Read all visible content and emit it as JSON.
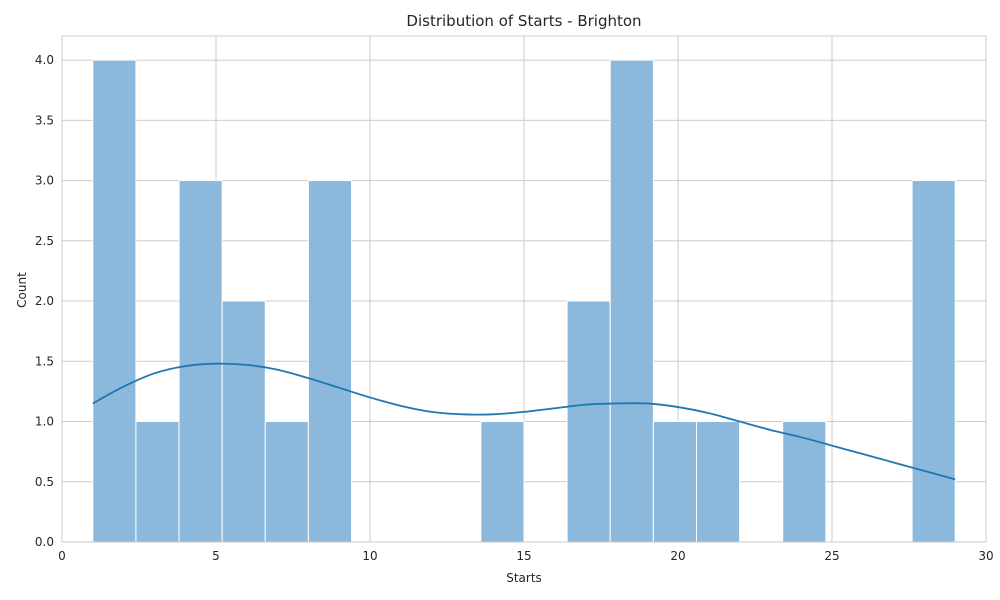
{
  "chart_data": {
    "type": "bar",
    "title": "Distribution of Starts - Brighton",
    "xlabel": "Starts",
    "ylabel": "Count",
    "xlim": [
      0.0,
      30.0
    ],
    "ylim": [
      0,
      4.2
    ],
    "xticks": [
      0,
      5,
      10,
      15,
      20,
      25,
      30
    ],
    "yticks": [
      "0.0",
      "0.5",
      "1.0",
      "1.5",
      "2.0",
      "2.5",
      "3.0",
      "3.5",
      "4.0"
    ],
    "grid": true,
    "bins": {
      "start": 1,
      "end": 29,
      "counts": [
        4,
        1,
        3,
        2,
        1,
        3,
        0,
        0,
        0,
        1,
        0,
        2,
        4,
        1,
        1,
        0,
        1,
        0,
        0,
        3
      ]
    },
    "kde": {
      "x": [
        1,
        2,
        3,
        4,
        5,
        6,
        7,
        8,
        9,
        10,
        11,
        12,
        13,
        14,
        15,
        16,
        17,
        18,
        19,
        20,
        21,
        22,
        23,
        24,
        25,
        26,
        27,
        28,
        29
      ],
      "y": [
        1.15,
        1.29,
        1.4,
        1.46,
        1.48,
        1.47,
        1.43,
        1.36,
        1.28,
        1.2,
        1.13,
        1.08,
        1.06,
        1.06,
        1.08,
        1.11,
        1.14,
        1.15,
        1.15,
        1.12,
        1.07,
        1.0,
        0.93,
        0.87,
        0.8,
        0.73,
        0.66,
        0.59,
        0.52
      ]
    },
    "colors": {
      "bar": "#8cb9db",
      "bar_edge": "#ffffff",
      "line": "#1f77b4",
      "grid": "#cccccc"
    }
  }
}
